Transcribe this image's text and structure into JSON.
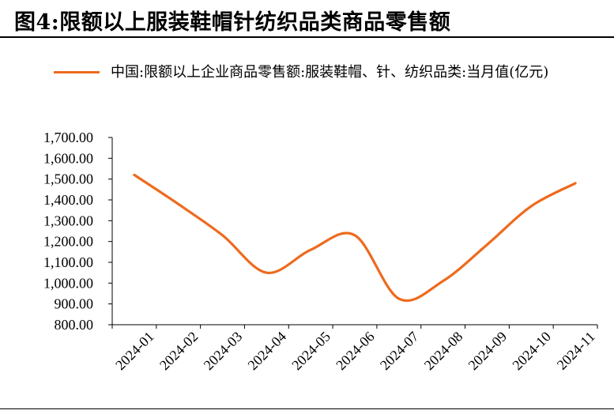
{
  "header": {
    "title": "图4:限额以上服装鞋帽针纺织品类商品零售额"
  },
  "legend": {
    "label": "中国:限额以上企业商品零售额:服装鞋帽、针、纺织品类:当月值(亿元)"
  },
  "colors": {
    "series": "#ee6a1e",
    "axis": "#000000"
  },
  "chart_data": {
    "type": "line",
    "x": [
      "2024-01",
      "2024-02",
      "2024-03",
      "2024-04",
      "2024-05",
      "2024-06",
      "2024-07",
      "2024-08",
      "2024-09",
      "2024-10",
      "2024-11"
    ],
    "series": [
      {
        "name": "中国:限额以上企业商品零售额:服装鞋帽、针、纺织品类:当月值(亿元)",
        "values": [
          1520,
          1380,
          1230,
          1050,
          1160,
          1230,
          925,
          1010,
          1185,
          1370,
          1480
        ]
      }
    ],
    "y_ticks": [
      "800.00",
      "900.00",
      "1,000.00",
      "1,100.00",
      "1,200.00",
      "1,300.00",
      "1,400.00",
      "1,500.00",
      "1,600.00",
      "1,700.00"
    ],
    "ylim": [
      800,
      1700
    ],
    "xlabel": "",
    "ylabel": "",
    "grid": false,
    "legend_position": "top"
  }
}
